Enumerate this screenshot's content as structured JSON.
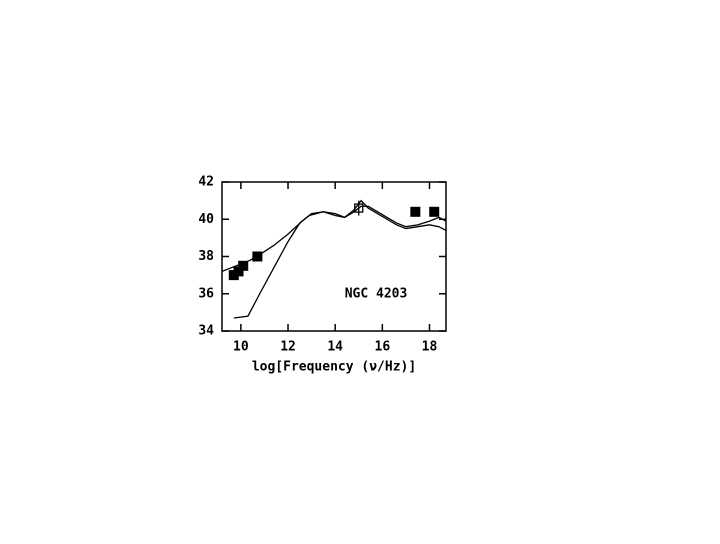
{
  "chart_data": {
    "type": "line",
    "x_label": "log[Frequency (ν/Hz)]",
    "annotation": "NGC 4203",
    "xlim": [
      9.2,
      18.7
    ],
    "ylim": [
      34,
      42
    ],
    "xticks": [
      10,
      12,
      14,
      16,
      18
    ],
    "yticks": [
      34,
      36,
      38,
      40,
      42
    ],
    "color": "#000000",
    "series": [
      {
        "x": [
          9.2,
          9.6,
          10.0,
          10.4,
          10.8,
          11.4,
          12.0,
          12.6,
          13.0,
          13.5,
          14.0,
          14.4,
          14.8,
          15.1,
          15.4,
          15.8,
          16.2,
          16.6,
          17.0,
          17.5,
          18.0,
          18.4,
          18.7
        ],
        "values": [
          37.2,
          37.4,
          37.6,
          37.8,
          38.1,
          38.6,
          39.2,
          39.9,
          40.3,
          40.4,
          40.2,
          40.1,
          40.4,
          40.7,
          40.7,
          40.4,
          40.1,
          39.8,
          39.6,
          39.7,
          39.9,
          40.1,
          39.9
        ]
      },
      {
        "x": [
          9.7,
          10.3,
          10.8,
          11.4,
          12.0,
          12.5,
          12.9,
          13.5,
          14.0,
          14.4,
          14.8,
          15.1,
          15.4,
          15.8,
          16.2,
          16.6,
          17.0,
          17.5,
          18.0,
          18.4,
          18.7
        ],
        "values": [
          34.7,
          34.8,
          36.0,
          37.4,
          38.8,
          39.8,
          40.2,
          40.4,
          40.3,
          40.1,
          40.5,
          41.0,
          40.6,
          40.3,
          40.0,
          39.7,
          39.5,
          39.6,
          39.7,
          39.6,
          39.4
        ]
      }
    ],
    "points": {
      "x": [
        9.7,
        9.9,
        10.1,
        10.7,
        17.4,
        18.2
      ],
      "values": [
        37.0,
        37.2,
        37.5,
        38.0,
        40.4,
        40.4
      ]
    },
    "open_points": {
      "x": [
        15.0
      ],
      "values": [
        40.6
      ],
      "errors": [
        0.4
      ]
    }
  }
}
